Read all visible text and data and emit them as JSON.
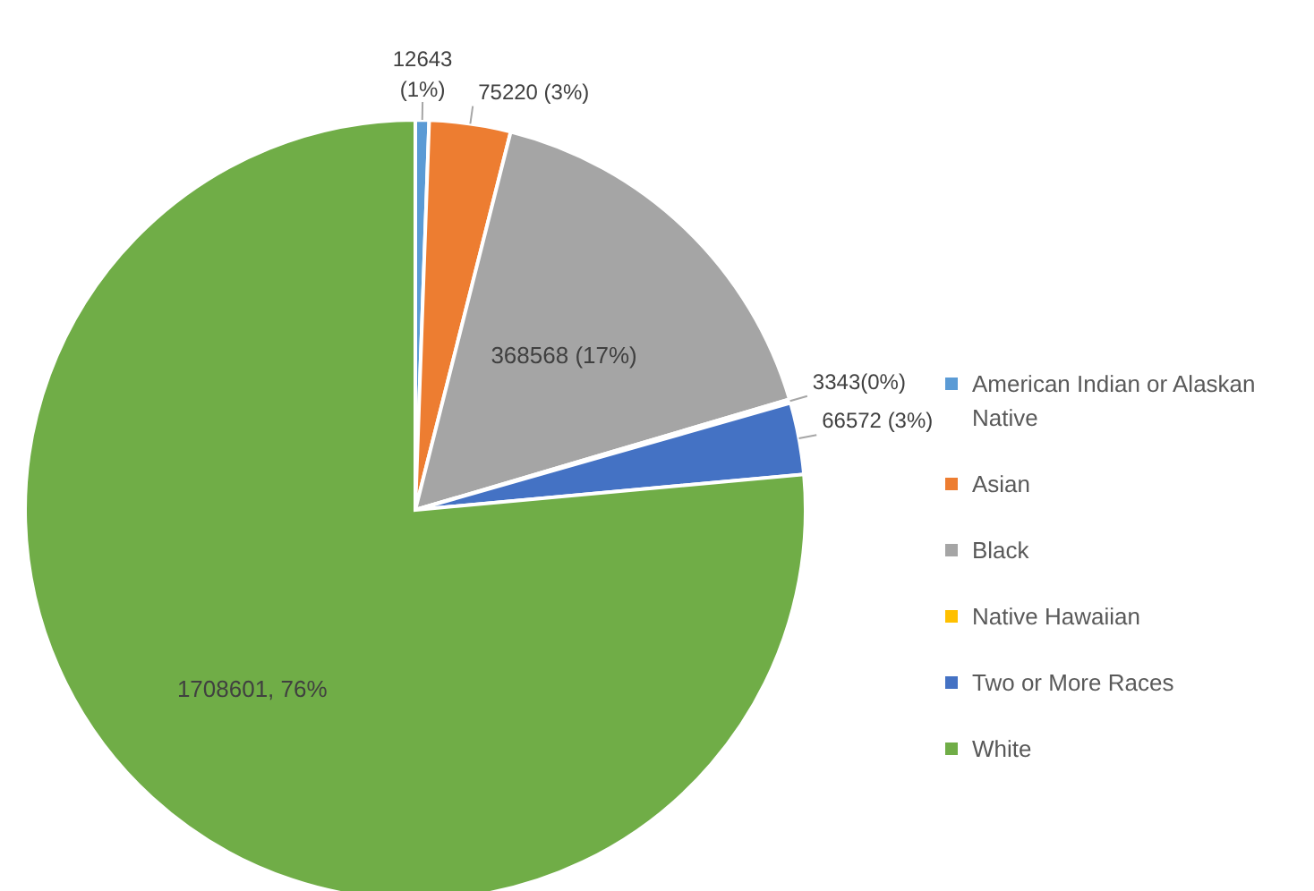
{
  "chart_data": {
    "type": "pie",
    "categories": [
      "American Indian or Alaskan Native",
      "Asian",
      "Black",
      "Native Hawaiian",
      "Two or More Races",
      "White"
    ],
    "values": [
      12643,
      75220,
      368568,
      3343,
      66572,
      1708601
    ],
    "colors": [
      "#5b9bd5",
      "#ed7d31",
      "#a5a5a5",
      "#ffc000",
      "#4472c4",
      "#70ad47"
    ],
    "value_labels": [
      "12643 (1%)",
      "75220 (3%)",
      "368568 (17%)",
      "3343(0%)",
      "66572 (3%)",
      "1708601, 76%"
    ],
    "legend": "right"
  }
}
